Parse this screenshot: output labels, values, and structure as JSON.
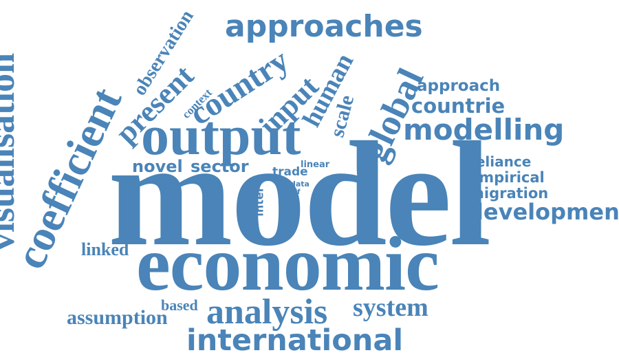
{
  "color": "#4a84b8",
  "words": [
    {
      "text": "model"
    },
    {
      "text": "economic"
    },
    {
      "text": "output"
    },
    {
      "text": "coefficient"
    },
    {
      "text": "visualisation"
    },
    {
      "text": "global"
    },
    {
      "text": "analysis"
    },
    {
      "text": "international"
    },
    {
      "text": "approaches"
    },
    {
      "text": "modelling"
    },
    {
      "text": "country"
    },
    {
      "text": "present"
    },
    {
      "text": "development"
    },
    {
      "text": "system"
    },
    {
      "text": "input"
    },
    {
      "text": "human"
    },
    {
      "text": "scale"
    },
    {
      "text": "countrie"
    },
    {
      "text": "approach"
    },
    {
      "text": "observation"
    },
    {
      "text": "context"
    },
    {
      "text": "novel"
    },
    {
      "text": "sector"
    },
    {
      "text": "reliance"
    },
    {
      "text": "empirical"
    },
    {
      "text": "migration"
    },
    {
      "text": "linked"
    },
    {
      "text": "assumption"
    },
    {
      "text": "based"
    },
    {
      "text": "trade"
    },
    {
      "text": "linear"
    },
    {
      "text": "data"
    },
    {
      "text": "self"
    },
    {
      "text": "inter"
    }
  ]
}
